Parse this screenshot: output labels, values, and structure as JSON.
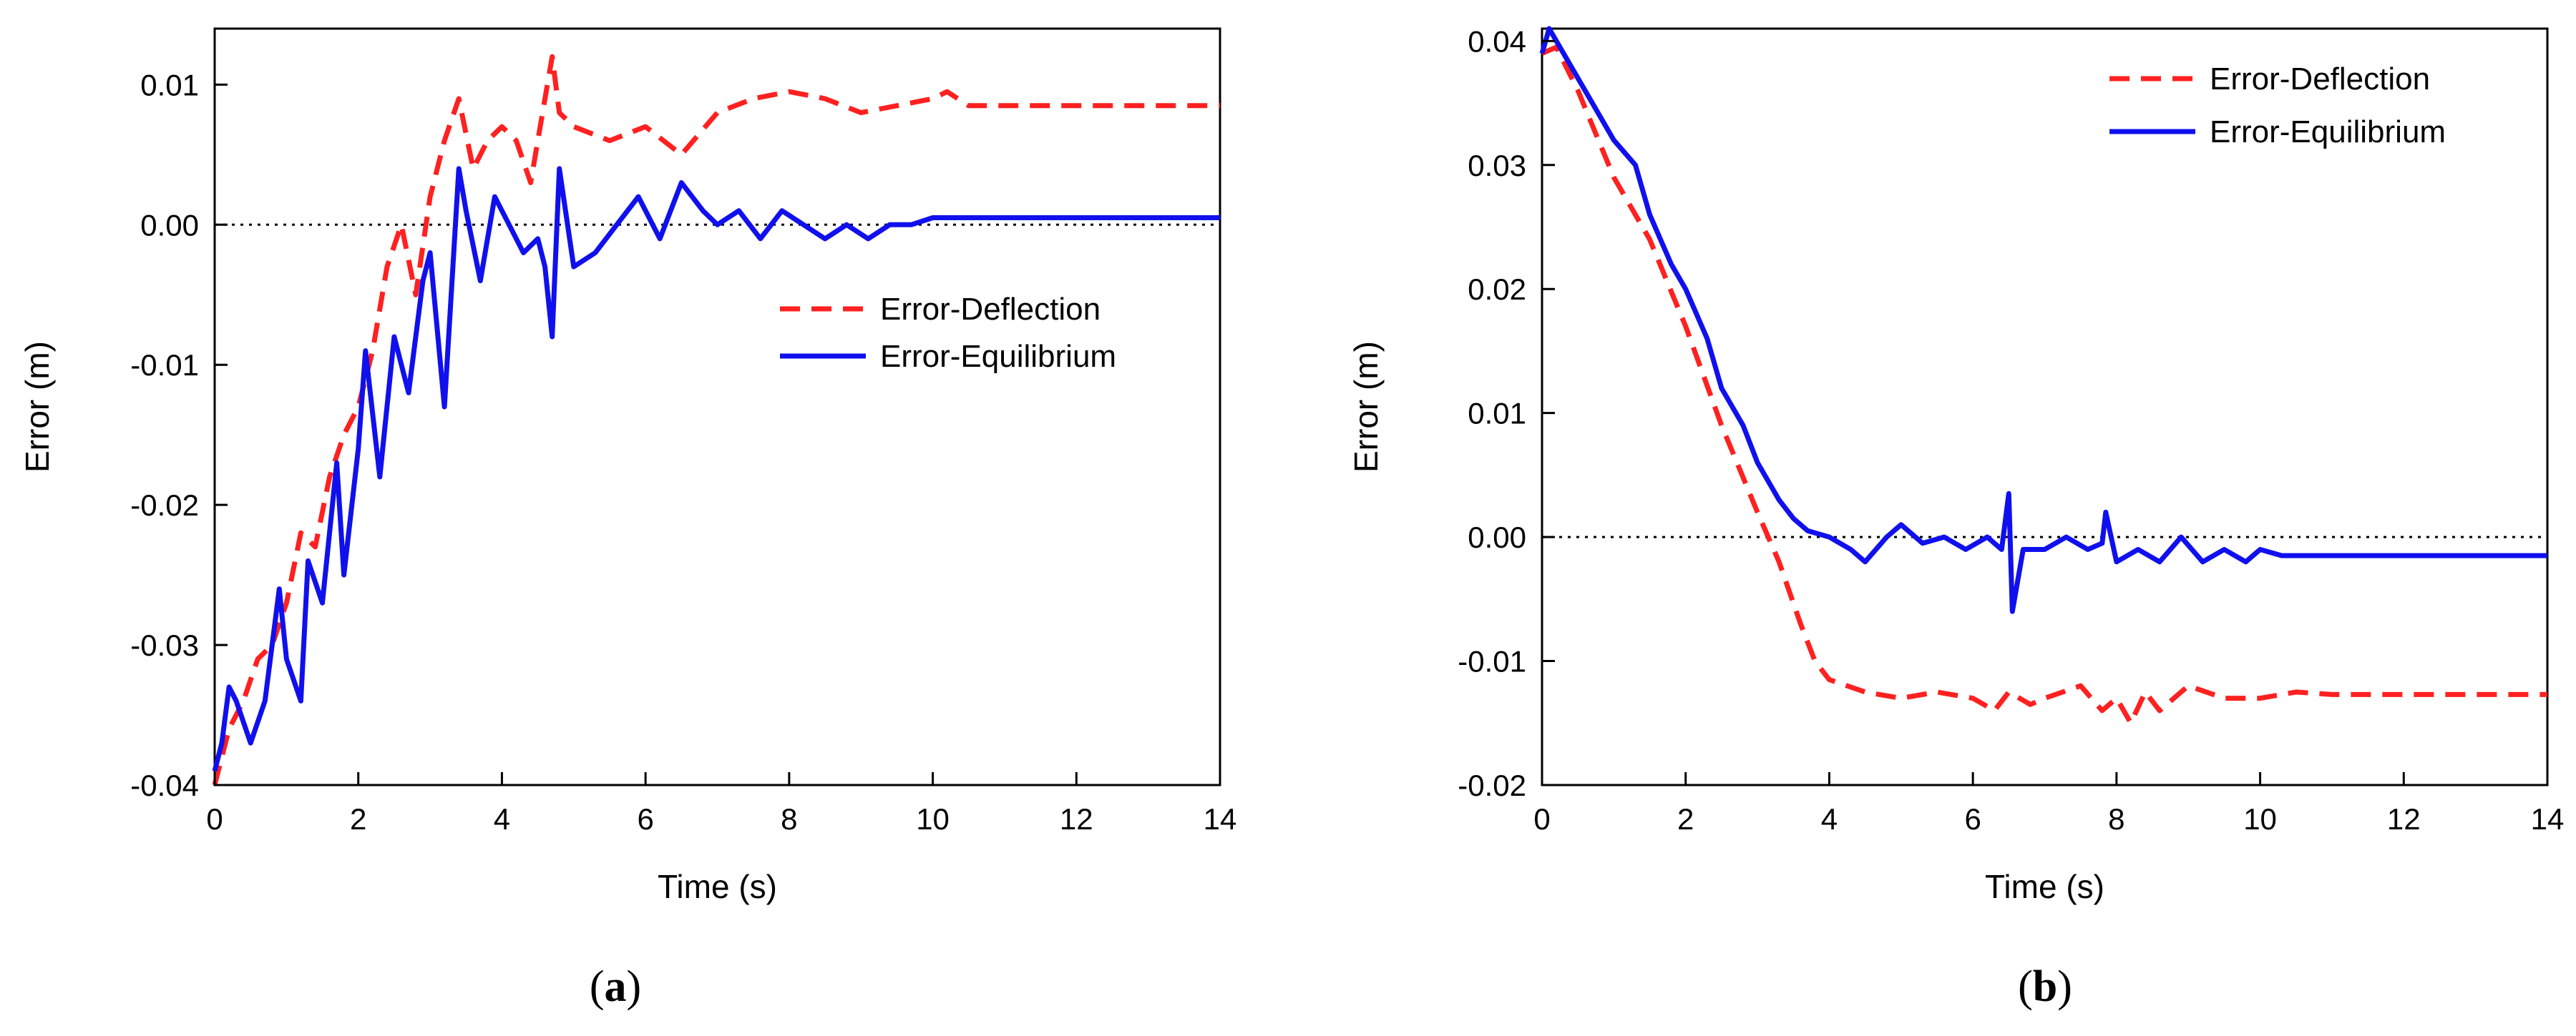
{
  "chart_data": [
    {
      "panel_label": "a",
      "type": "line",
      "xlabel": "Time (s)",
      "ylabel": "Error (m)",
      "xlim": [
        0,
        14
      ],
      "ylim": [
        -0.04,
        0.014
      ],
      "xticks": [
        0,
        2,
        4,
        6,
        8,
        10,
        12,
        14
      ],
      "xtick_labels": [
        "0",
        "2",
        "4",
        "6",
        "8",
        "10",
        "12",
        "14"
      ],
      "yticks": [
        -0.04,
        -0.03,
        -0.02,
        -0.01,
        0.0,
        0.01
      ],
      "ytick_labels": [
        "-0.04",
        "-0.03",
        "-0.02",
        "-0.01",
        "0.00",
        "0.01"
      ],
      "reference_line": 0.0,
      "legend_position": "middle-right",
      "series": [
        {
          "name": "Error-Deflection",
          "color": "#ff2020",
          "style": "dashed",
          "x": [
            0.0,
            0.2,
            0.4,
            0.6,
            0.8,
            1.0,
            1.2,
            1.4,
            1.6,
            1.8,
            2.0,
            2.2,
            2.4,
            2.6,
            2.8,
            3.0,
            3.2,
            3.4,
            3.6,
            3.8,
            4.0,
            4.2,
            4.4,
            4.6,
            4.7,
            4.8,
            5.0,
            5.5,
            6.0,
            6.5,
            7.0,
            7.5,
            8.0,
            8.5,
            9.0,
            9.5,
            10.0,
            10.2,
            10.5,
            11.0,
            12.0,
            13.0,
            14.0
          ],
          "y": [
            -0.04,
            -0.036,
            -0.034,
            -0.031,
            -0.03,
            -0.027,
            -0.022,
            -0.023,
            -0.018,
            -0.015,
            -0.013,
            -0.009,
            -0.003,
            0.0,
            -0.005,
            0.002,
            0.006,
            0.009,
            0.004,
            0.006,
            0.007,
            0.006,
            0.003,
            0.009,
            0.012,
            0.008,
            0.007,
            0.006,
            0.007,
            0.005,
            0.008,
            0.009,
            0.0095,
            0.009,
            0.008,
            0.0085,
            0.009,
            0.0095,
            0.0085,
            0.0085,
            0.0085,
            0.0085,
            0.0085
          ]
        },
        {
          "name": "Error-Equilibrium",
          "color": "#1010ee",
          "style": "solid",
          "x": [
            0.0,
            0.1,
            0.2,
            0.3,
            0.5,
            0.7,
            0.9,
            1.0,
            1.2,
            1.3,
            1.5,
            1.7,
            1.8,
            2.0,
            2.1,
            2.3,
            2.5,
            2.7,
            2.9,
            3.0,
            3.2,
            3.4,
            3.5,
            3.7,
            3.9,
            4.1,
            4.3,
            4.5,
            4.6,
            4.7,
            4.8,
            5.0,
            5.3,
            5.6,
            5.9,
            6.2,
            6.5,
            6.8,
            7.0,
            7.3,
            7.6,
            7.9,
            8.2,
            8.5,
            8.8,
            9.1,
            9.4,
            9.7,
            10.0,
            10.5,
            11.0,
            12.0,
            13.0,
            14.0
          ],
          "y": [
            -0.039,
            -0.037,
            -0.033,
            -0.034,
            -0.037,
            -0.034,
            -0.026,
            -0.031,
            -0.034,
            -0.024,
            -0.027,
            -0.017,
            -0.025,
            -0.016,
            -0.009,
            -0.018,
            -0.008,
            -0.012,
            -0.004,
            -0.002,
            -0.013,
            0.004,
            0.001,
            -0.004,
            0.002,
            0.0,
            -0.002,
            -0.001,
            -0.003,
            -0.008,
            0.004,
            -0.003,
            -0.002,
            0.0,
            0.002,
            -0.001,
            0.003,
            0.001,
            0.0,
            0.001,
            -0.001,
            0.001,
            0.0,
            -0.001,
            0.0,
            -0.001,
            0.0,
            0.0,
            0.0005,
            0.0005,
            0.0005,
            0.0005,
            0.0005,
            0.0005
          ]
        }
      ]
    },
    {
      "panel_label": "b",
      "type": "line",
      "xlabel": "Time (s)",
      "ylabel": "Error (m)",
      "xlim": [
        0,
        14
      ],
      "ylim": [
        -0.02,
        0.041
      ],
      "xticks": [
        0,
        2,
        4,
        6,
        8,
        10,
        12,
        14
      ],
      "xtick_labels": [
        "0",
        "2",
        "4",
        "6",
        "8",
        "10",
        "12",
        "14"
      ],
      "yticks": [
        -0.02,
        -0.01,
        0.0,
        0.01,
        0.02,
        0.03,
        0.04
      ],
      "ytick_labels": [
        "-0.02",
        "-0.01",
        "0.00",
        "0.01",
        "0.02",
        "0.03",
        "0.04"
      ],
      "reference_line": 0.0,
      "legend_position": "top-right",
      "series": [
        {
          "name": "Error-Deflection",
          "color": "#ff2020",
          "style": "dashed",
          "x": [
            0.0,
            0.2,
            0.5,
            1.0,
            1.5,
            2.0,
            2.5,
            3.0,
            3.3,
            3.6,
            3.8,
            4.0,
            4.5,
            5.0,
            5.5,
            6.0,
            6.3,
            6.5,
            6.8,
            7.0,
            7.5,
            7.8,
            8.0,
            8.2,
            8.4,
            8.6,
            9.0,
            9.5,
            10.0,
            10.5,
            11.0,
            12.0,
            13.0,
            14.0
          ],
          "y": [
            0.039,
            0.0395,
            0.036,
            0.029,
            0.024,
            0.017,
            0.009,
            0.002,
            -0.002,
            -0.007,
            -0.01,
            -0.0115,
            -0.0125,
            -0.013,
            -0.0125,
            -0.013,
            -0.014,
            -0.0125,
            -0.0135,
            -0.013,
            -0.012,
            -0.014,
            -0.013,
            -0.015,
            -0.0125,
            -0.014,
            -0.012,
            -0.013,
            -0.013,
            -0.0125,
            -0.0127,
            -0.0127,
            -0.0127,
            -0.0127
          ]
        },
        {
          "name": "Error-Equilibrium",
          "color": "#1010ee",
          "style": "solid",
          "x": [
            0.0,
            0.1,
            0.3,
            0.5,
            0.8,
            1.0,
            1.3,
            1.5,
            1.8,
            2.0,
            2.3,
            2.5,
            2.8,
            3.0,
            3.3,
            3.5,
            3.7,
            4.0,
            4.3,
            4.5,
            4.8,
            5.0,
            5.3,
            5.6,
            5.9,
            6.2,
            6.4,
            6.5,
            6.55,
            6.7,
            7.0,
            7.3,
            7.6,
            7.8,
            7.85,
            8.0,
            8.3,
            8.6,
            8.9,
            9.2,
            9.5,
            9.8,
            10.0,
            10.3,
            10.5,
            11.0,
            12.0,
            13.0,
            14.0
          ],
          "y": [
            0.039,
            0.041,
            0.039,
            0.037,
            0.034,
            0.032,
            0.03,
            0.026,
            0.022,
            0.02,
            0.016,
            0.012,
            0.009,
            0.006,
            0.003,
            0.0015,
            0.0005,
            0.0,
            -0.001,
            -0.002,
            0.0,
            0.001,
            -0.0005,
            0.0,
            -0.001,
            0.0,
            -0.001,
            0.0035,
            -0.006,
            -0.001,
            -0.001,
            0.0,
            -0.001,
            -0.0005,
            0.002,
            -0.002,
            -0.001,
            -0.002,
            0.0,
            -0.002,
            -0.001,
            -0.002,
            -0.001,
            -0.0015,
            -0.0015,
            -0.0015,
            -0.0015,
            -0.0015,
            -0.0015
          ]
        }
      ]
    }
  ]
}
